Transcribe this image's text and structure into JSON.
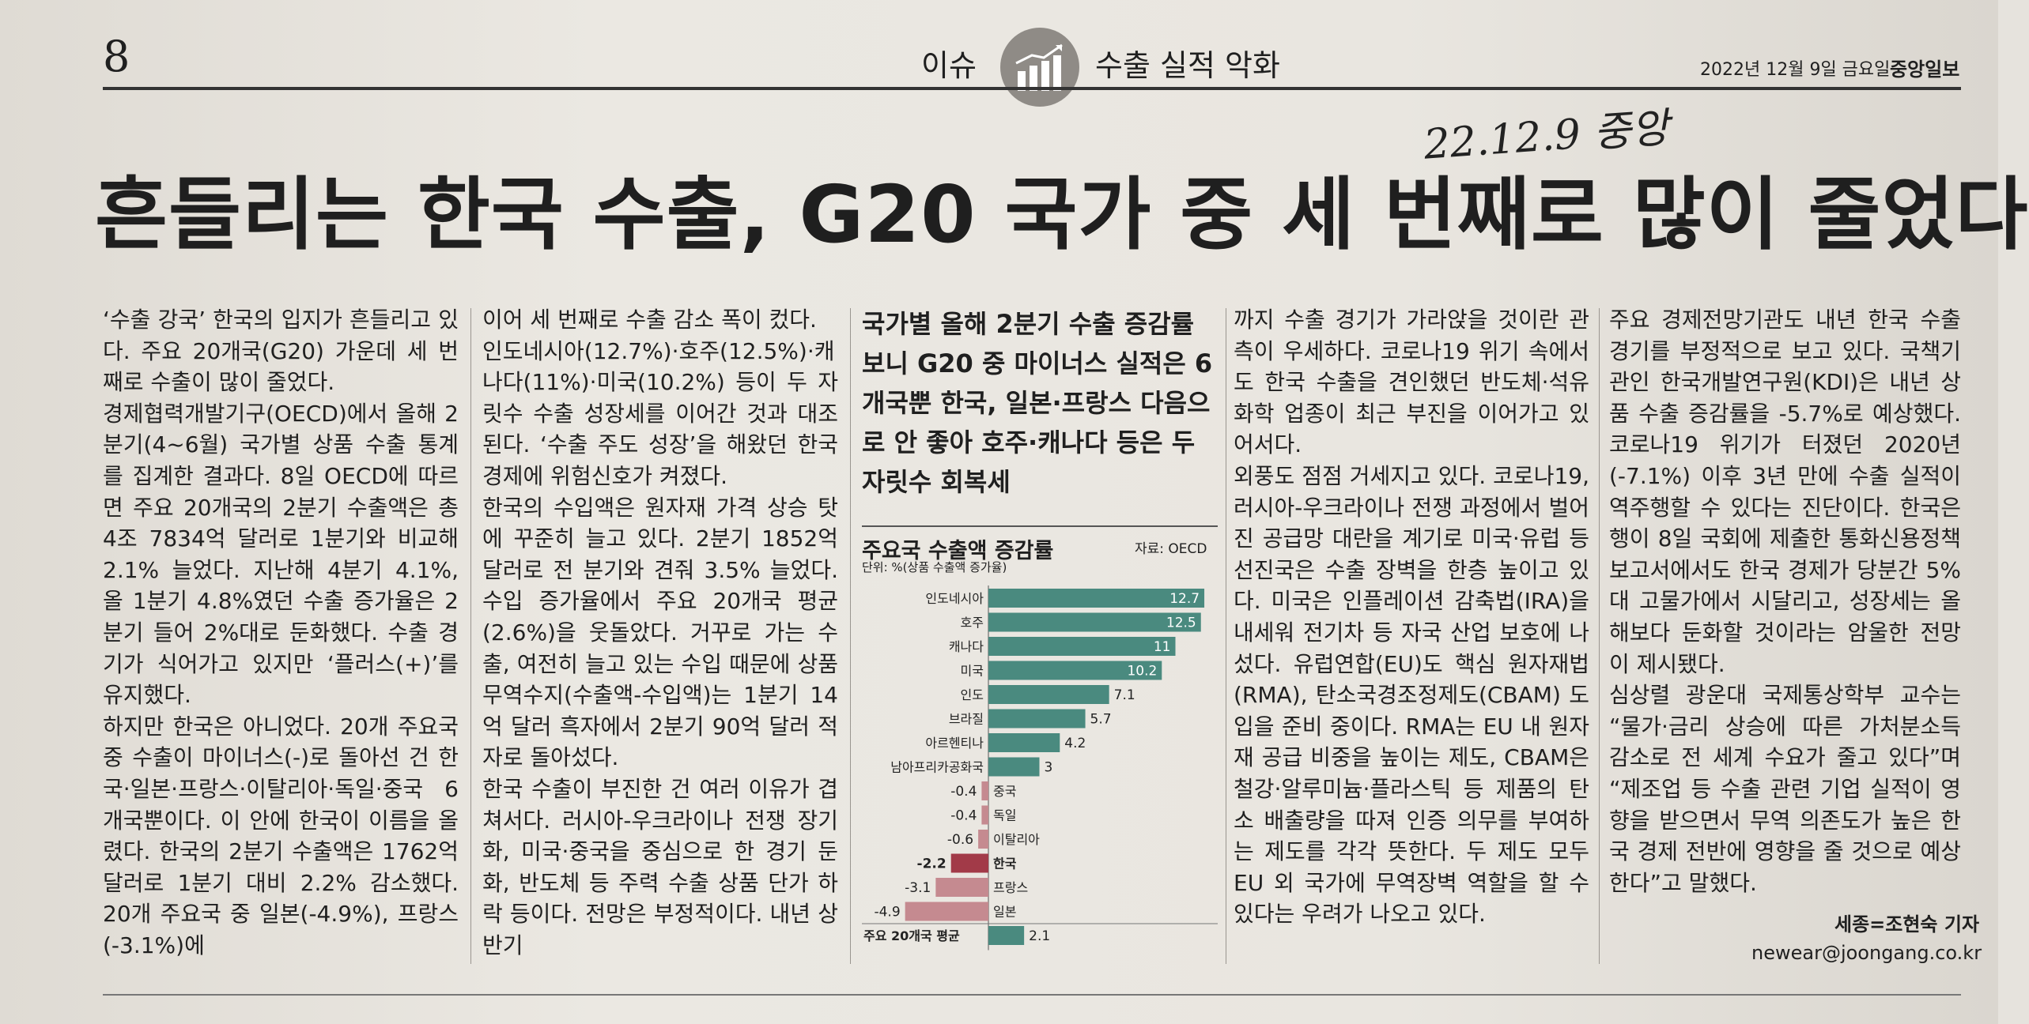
{
  "header": {
    "page_number": "8",
    "section": "이슈",
    "topic": "수출 실적 악화",
    "date": "2022년 12월 9일 금요일",
    "brand": "중앙일보",
    "handwritten_note": "22.12.9 중앙"
  },
  "headline": "흔들리는 한국 수출, G20 국가 중 세 번째로 많이 줄었다",
  "subhead": "국가별 올해 2분기 수출 증감률 보니 G20 중 마이너스 실적은 6개국뿐 한국, 일본·프랑스 다음으로 안 좋아 호주·캐나다 등은 두 자릿수 회복세",
  "columns": {
    "col1": [
      "‘수출 강국’ 한국의 입지가 흔들리고 있다. 주요 20개국(G20) 가운데 세 번째로 수출이 많이 줄었다.",
      "경제협력개발기구(OECD)에서 올해 2분기(4~6월) 국가별 상품 수출 통계를 집계한 결과다. 8일 OECD에 따르면 주요 20개국의 2분기 수출액은 총 4조 7834억 달러로 1분기와 비교해 2.1% 늘었다. 지난해 4분기 4.1%, 올 1분기 4.8%였던 수출 증가율은 2분기 들어 2%대로 둔화했다. 수출 경기가 식어가고 있지만 ‘플러스(+)’를 유지했다.",
      "하지만 한국은 아니었다. 20개 주요국 중 수출이 마이너스(-)로 돌아선 건 한국·일본·프랑스·이탈리아·독일·중국 6개국뿐이다. 이 안에 한국이 이름을 올렸다. 한국의 2분기 수출액은 1762억 달러로 1분기 대비 2.2% 감소했다. 20개 주요국 중 일본(-4.9%), 프랑스(-3.1%)에"
    ],
    "col2": [
      "이어 세 번째로 수출 감소 폭이 컸다.",
      "인도네시아(12.7%)·호주(12.5%)·캐나다(11%)·미국(10.2%) 등이 두 자릿수 수출 성장세를 이어간 것과 대조된다. ‘수출 주도 성장’을 해왔던 한국 경제에 위험신호가 켜졌다.",
      "한국의 수입액은 원자재 가격 상승 탓에 꾸준히 늘고 있다. 2분기 1852억 달러로 전 분기와 견줘 3.5% 늘었다. 수입 증가율에서 주요 20개국 평균(2.6%)을 웃돌았다. 거꾸로 가는 수출, 여전히 늘고 있는 수입 때문에 상품 무역수지(수출액-수입액)는 1분기 14억 달러 흑자에서 2분기 90억 달러 적자로 돌아섰다.",
      "한국 수출이 부진한 건 여러 이유가 겹쳐서다. 러시아-우크라이나 전쟁 장기화, 미국·중국을 중심으로 한 경기 둔화, 반도체 등 주력 수출 상품 단가 하락 등이다. 전망은 부정적이다. 내년 상반기"
    ],
    "col4": [
      "까지 수출 경기가 가라앉을 것이란 관측이 우세하다. 코로나19 위기 속에서도 한국 수출을 견인했던 반도체·석유화학 업종이 최근 부진을 이어가고 있어서다.",
      "외풍도 점점 거세지고 있다. 코로나19, 러시아-우크라이나 전쟁 과정에서 벌어진 공급망 대란을 계기로 미국·유럽 등 선진국은 수출 장벽을 한층 높이고 있다. 미국은 인플레이션 감축법(IRA)을 내세워 전기차 등 자국 산업 보호에 나섰다. 유럽연합(EU)도 핵심 원자재법(RMA), 탄소국경조정제도(CBAM) 도입을 준비 중이다. RMA는 EU 내 원자재 공급 비중을 높이는 제도, CBAM은 철강·알루미늄·플라스틱 등 제품의 탄소 배출량을 따져 인증 의무를 부여하는 제도를 각각 뜻한다. 두 제도 모두 EU 외 국가에 무역장벽 역할을 할 수 있다는 우려가 나오고 있다."
    ],
    "col5": [
      "주요 경제전망기관도 내년 한국 수출 경기를 부정적으로 보고 있다. 국책기관인 한국개발연구원(KDI)은 내년 상품 수출 증감률을 -5.7%로 예상했다. 코로나19 위기가 터졌던 2020년(-7.1%) 이후 3년 만에 수출 실적이 역주행할 수 있다는 진단이다. 한국은행이 8일 국회에 제출한 통화신용정책보고서에서도 한국 경제가 당분간 5%대 고물가에서 시달리고, 성장세는 올해보다 둔화할 것이라는 암울한 전망이 제시됐다.",
      "심상렬 광운대 국제통상학부 교수는 “물가·금리 상승에 따른 가처분소득 감소로 전 세계 수요가 줄고 있다”며 “제조업 등 수출 관련 기업 실적이 영향을 받으면서 무역 의존도가 높은 한국 경제 전반에 영향을 줄 것으로 예상한다”고 말했다."
    ]
  },
  "byline": "세종=조현숙 기자",
  "email": "newear@joongang.co.kr",
  "chart_data": {
    "type": "bar",
    "orientation": "horizontal",
    "title": "주요국 수출액 증감률",
    "unit_note": "단위: %(상품 수출액 증가율)",
    "source": "자료: OECD",
    "categories": [
      "인도네시아",
      "호주",
      "캐나다",
      "미국",
      "인도",
      "브라질",
      "아르헨티나",
      "남아프리카공화국",
      "중국",
      "독일",
      "이탈리아",
      "한국",
      "프랑스",
      "일본",
      "주요 20개국 평균"
    ],
    "values": [
      12.7,
      12.5,
      11,
      10.2,
      7.1,
      5.7,
      4.2,
      3,
      -0.4,
      -0.4,
      -0.6,
      -2.2,
      -3.1,
      -4.9,
      2.1
    ],
    "value_labels": [
      "12.7",
      "12.5",
      "11",
      "10.2",
      "7.1",
      "5.7",
      "4.2",
      "3",
      "-0.4",
      "-0.4",
      "-0.6",
      "-2.2",
      "-3.1",
      "-4.9",
      "2.1"
    ],
    "colors": {
      "positive": "#4a8a7f",
      "negative": "#c58a90",
      "korea": "#a23a48"
    }
  }
}
